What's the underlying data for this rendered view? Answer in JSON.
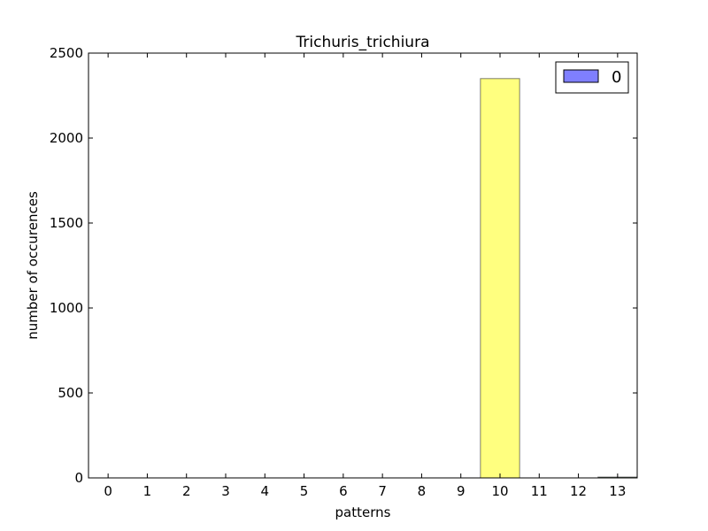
{
  "chart_data": {
    "type": "bar",
    "title": "Trichuris_trichiura",
    "xlabel": "patterns",
    "ylabel": "number of occurences",
    "categories": [
      "0",
      "1",
      "2",
      "3",
      "4",
      "5",
      "6",
      "7",
      "8",
      "9",
      "10",
      "11",
      "12",
      "13"
    ],
    "series": [
      {
        "name": "0",
        "values": [
          0,
          0,
          0,
          0,
          0,
          0,
          0,
          0,
          0,
          0,
          2350,
          0,
          0,
          5
        ],
        "colors": [
          "#ffff00",
          "#ffff00",
          "#ffff00",
          "#ffff00",
          "#ffff00",
          "#ffff00",
          "#ffff00",
          "#ffff00",
          "#ffff00",
          "#ffff00",
          "#ffff00",
          "#ffff00",
          "#ffff00",
          "#2a4d2a"
        ]
      }
    ],
    "ylim": [
      0,
      2500
    ],
    "xlim": [
      -0.5,
      13.5
    ],
    "yticks": [
      0,
      500,
      1000,
      1500,
      2000,
      2500
    ],
    "grid": false,
    "legend_position": "top-right",
    "legend_color": "#0000ff",
    "bar_opacity": 0.5,
    "bar_edge_color": "#000000"
  }
}
